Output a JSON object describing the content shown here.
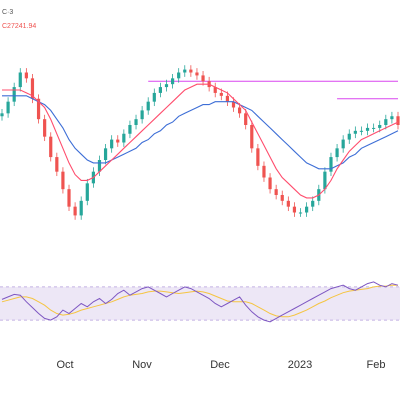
{
  "header": {
    "symbol_fragment": "C·3",
    "price_fragment": "C27241.94"
  },
  "colors": {
    "up_candle": "#26a69a",
    "down_candle": "#ef5350",
    "ma_fast": "#ff4d6d",
    "ma_slow": "#3d6ed6",
    "resistance": "#d946ef",
    "rsi_line": "#7e57c2",
    "rsi_signal": "#f5c542",
    "rsi_band_fill": "#ede7f6"
  },
  "chart_data": [
    {
      "type": "candlestick",
      "title": "",
      "x_tick_labels": [
        "Oct",
        "Nov",
        "Dec",
        "2023",
        "Feb"
      ],
      "price_readout": "C27241.94",
      "series": [
        {
          "name": "",
          "kind": "close",
          "values": [
            70,
            74,
            79,
            84,
            82,
            75,
            68,
            62,
            55,
            50,
            44,
            38,
            35,
            40,
            46,
            50,
            54,
            58,
            61,
            60,
            63,
            66,
            68,
            71,
            74,
            77,
            79,
            80,
            82,
            84,
            85,
            84,
            83,
            81,
            79,
            77,
            76,
            74,
            72,
            70,
            66,
            58,
            52,
            48,
            44,
            42,
            40,
            38,
            36,
            36,
            38,
            40,
            44,
            50,
            55,
            58,
            61,
            63,
            64,
            64,
            65,
            65,
            66,
            68,
            69,
            66
          ]
        },
        {
          "name": "",
          "kind": "moving-average-fast",
          "values": [
            78,
            78,
            78,
            78,
            77,
            76,
            74,
            72,
            68,
            63,
            58,
            53,
            49,
            47,
            47,
            48,
            50,
            52,
            54,
            56,
            58,
            60,
            62,
            64,
            66,
            68,
            70,
            72,
            74,
            76,
            78,
            79,
            80,
            80,
            80,
            79,
            78,
            77,
            75,
            73,
            71,
            67,
            63,
            59,
            55,
            51,
            48,
            46,
            44,
            42,
            41,
            41,
            42,
            44,
            47,
            51,
            54,
            57,
            59,
            61,
            62,
            63,
            64,
            65,
            66,
            67
          ]
        },
        {
          "name": "",
          "kind": "moving-average-slow",
          "values": [
            76,
            76,
            76,
            76,
            76,
            75,
            74,
            73,
            71,
            68,
            65,
            61,
            58,
            56,
            54,
            53,
            53,
            53,
            54,
            55,
            56,
            57,
            58,
            60,
            61,
            63,
            64,
            66,
            67,
            69,
            70,
            71,
            72,
            73,
            73,
            74,
            74,
            74,
            74,
            73,
            72,
            71,
            69,
            67,
            65,
            63,
            61,
            59,
            57,
            55,
            53,
            52,
            51,
            51,
            51,
            52,
            53,
            55,
            56,
            58,
            59,
            60,
            61,
            62,
            63,
            64
          ]
        }
      ],
      "resistance_segments": [
        {
          "from_index": 24,
          "to_index": 65,
          "level": 81
        },
        {
          "from_index": 55,
          "to_index": 65,
          "level": 75
        }
      ],
      "ylim": [
        30,
        90
      ],
      "grid": false,
      "legend": "none"
    },
    {
      "type": "line",
      "title": "",
      "indicator": "RSI",
      "series": [
        {
          "name": "",
          "kind": "rsi",
          "values": [
            55,
            58,
            61,
            60,
            52,
            45,
            38,
            32,
            30,
            34,
            42,
            38,
            44,
            50,
            46,
            52,
            56,
            50,
            55,
            62,
            66,
            60,
            64,
            68,
            70,
            66,
            62,
            58,
            62,
            66,
            70,
            68,
            64,
            60,
            56,
            50,
            46,
            50,
            54,
            58,
            48,
            40,
            34,
            30,
            28,
            32,
            36,
            40,
            44,
            48,
            52,
            56,
            60,
            64,
            68,
            70,
            72,
            68,
            66,
            70,
            74,
            76,
            72,
            70,
            74,
            72
          ]
        },
        {
          "name": "",
          "kind": "signal",
          "values": [
            52,
            54,
            56,
            58,
            58,
            56,
            52,
            48,
            42,
            38,
            36,
            37,
            39,
            42,
            44,
            46,
            48,
            50,
            52,
            55,
            58,
            60,
            61,
            62,
            64,
            65,
            65,
            64,
            63,
            62,
            63,
            64,
            65,
            64,
            62,
            59,
            56,
            53,
            52,
            52,
            52,
            50,
            46,
            42,
            38,
            35,
            34,
            34,
            36,
            39,
            42,
            46,
            50,
            53,
            57,
            60,
            63,
            65,
            66,
            67,
            68,
            70,
            71,
            71,
            72,
            72
          ]
        }
      ],
      "ylim": [
        0,
        100
      ],
      "band": [
        30,
        70
      ],
      "grid": false,
      "legend": "none"
    }
  ]
}
